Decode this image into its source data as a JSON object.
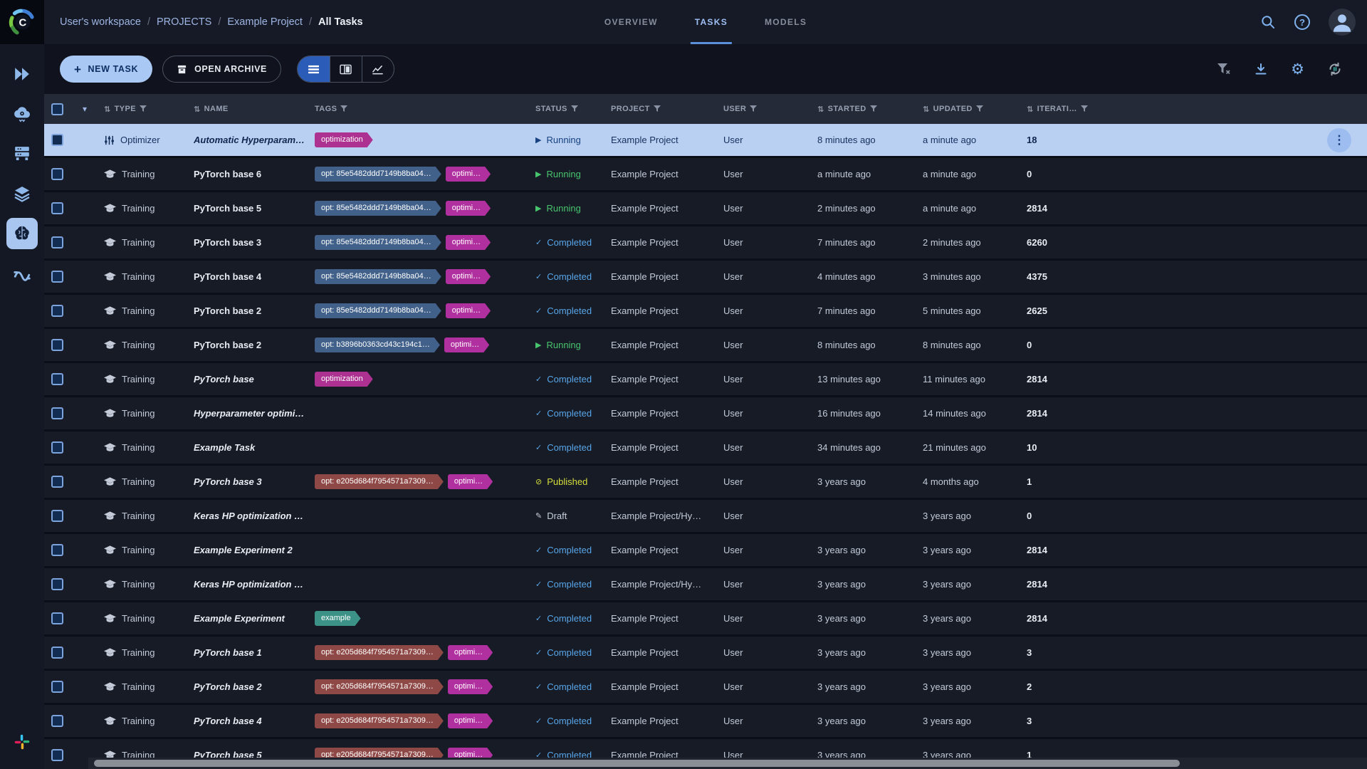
{
  "topbar": {
    "breadcrumb": [
      "User's workspace",
      "PROJECTS",
      "Example Project",
      "All Tasks"
    ],
    "separator": "/",
    "tabs": [
      {
        "label": "OVERVIEW",
        "active": false
      },
      {
        "label": "TASKS",
        "active": true
      },
      {
        "label": "MODELS",
        "active": false
      }
    ]
  },
  "toolbar": {
    "new_task": "NEW TASK",
    "open_archive": "OPEN ARCHIVE"
  },
  "sidebar": {
    "items": [
      {
        "name": "quick-start",
        "active": false
      },
      {
        "name": "apps",
        "active": false
      },
      {
        "name": "workers-queues",
        "active": false
      },
      {
        "name": "datasets",
        "active": false
      },
      {
        "name": "projects",
        "active": true
      },
      {
        "name": "pipelines",
        "active": false
      }
    ]
  },
  "icons": {
    "caret": "▾",
    "sort": "⇅",
    "play": "▶",
    "check": "✓",
    "published": "⊘",
    "draft": "✎",
    "menu": "⋮",
    "plus": "+",
    "gear": "⚙",
    "help": "?"
  },
  "colors": {
    "accent": "#7fb3f0",
    "selected_row": "#b9d0f2",
    "status_running": "#47c46d",
    "status_completed": "#58a6e8",
    "status_published": "#d6df3a",
    "status_draft": "#c7cfda",
    "tag_magenta": "#b1309f",
    "tag_optimization": "#ac3191",
    "tag_slate": "#41608a",
    "tag_red": "#8e4947",
    "tag_teal": "#3d9287"
  },
  "table": {
    "columns": [
      {
        "label": "TYPE",
        "sort": true,
        "filter": true
      },
      {
        "label": "NAME",
        "sort": true,
        "filter": false
      },
      {
        "label": "TAGS",
        "sort": false,
        "filter": true
      },
      {
        "label": "STATUS",
        "sort": false,
        "filter": true
      },
      {
        "label": "PROJECT",
        "sort": false,
        "filter": true
      },
      {
        "label": "USER",
        "sort": false,
        "filter": true
      },
      {
        "label": "STARTED",
        "sort": true,
        "filter": true
      },
      {
        "label": "UPDATED",
        "sort": true,
        "filter": true
      },
      {
        "label": "ITERATI…",
        "sort": true,
        "filter": true
      }
    ],
    "rows": [
      {
        "selected": true,
        "type": "Optimizer",
        "name": "Automatic Hyperparamete…",
        "italic": true,
        "tags": [
          {
            "text": "optimization",
            "color": "#ac3191"
          }
        ],
        "status": {
          "label": "Running",
          "kind": "running"
        },
        "project": "Example Project",
        "user": "User",
        "started": "8 minutes ago",
        "updated": "a minute ago",
        "iterations": "18",
        "menu": true
      },
      {
        "type": "Training",
        "name": "PyTorch base 6",
        "italic": false,
        "tags": [
          {
            "text": "opt: 85e5482ddd7149b8ba04…",
            "color": "#41608a"
          },
          {
            "text": "optimi…",
            "color": "#b1309f"
          }
        ],
        "status": {
          "label": "Running",
          "kind": "running"
        },
        "project": "Example Project",
        "user": "User",
        "started": "a minute ago",
        "updated": "a minute ago",
        "iterations": "0"
      },
      {
        "type": "Training",
        "name": "PyTorch base 5",
        "italic": false,
        "tags": [
          {
            "text": "opt: 85e5482ddd7149b8ba04…",
            "color": "#41608a"
          },
          {
            "text": "optimi…",
            "color": "#b1309f"
          }
        ],
        "status": {
          "label": "Running",
          "kind": "running"
        },
        "project": "Example Project",
        "user": "User",
        "started": "2 minutes ago",
        "updated": "a minute ago",
        "iterations": "2814"
      },
      {
        "type": "Training",
        "name": "PyTorch base 3",
        "italic": false,
        "tags": [
          {
            "text": "opt: 85e5482ddd7149b8ba04…",
            "color": "#41608a"
          },
          {
            "text": "optimi…",
            "color": "#b1309f"
          }
        ],
        "status": {
          "label": "Completed",
          "kind": "completed"
        },
        "project": "Example Project",
        "user": "User",
        "started": "7 minutes ago",
        "updated": "2 minutes ago",
        "iterations": "6260"
      },
      {
        "type": "Training",
        "name": "PyTorch base 4",
        "italic": false,
        "tags": [
          {
            "text": "opt: 85e5482ddd7149b8ba04…",
            "color": "#41608a"
          },
          {
            "text": "optimi…",
            "color": "#b1309f"
          }
        ],
        "status": {
          "label": "Completed",
          "kind": "completed"
        },
        "project": "Example Project",
        "user": "User",
        "started": "4 minutes ago",
        "updated": "3 minutes ago",
        "iterations": "4375"
      },
      {
        "type": "Training",
        "name": "PyTorch base 2",
        "italic": false,
        "tags": [
          {
            "text": "opt: 85e5482ddd7149b8ba04…",
            "color": "#41608a"
          },
          {
            "text": "optimi…",
            "color": "#b1309f"
          }
        ],
        "status": {
          "label": "Completed",
          "kind": "completed"
        },
        "project": "Example Project",
        "user": "User",
        "started": "7 minutes ago",
        "updated": "5 minutes ago",
        "iterations": "2625"
      },
      {
        "type": "Training",
        "name": "PyTorch base 2",
        "italic": false,
        "tags": [
          {
            "text": "opt: b3896b0363cd43c194c1…",
            "color": "#41608a"
          },
          {
            "text": "optimi…",
            "color": "#b1309f"
          }
        ],
        "status": {
          "label": "Running",
          "kind": "running"
        },
        "project": "Example Project",
        "user": "User",
        "started": "8 minutes ago",
        "updated": "8 minutes ago",
        "iterations": "0"
      },
      {
        "type": "Training",
        "name": "PyTorch base",
        "italic": true,
        "tags": [
          {
            "text": "optimization",
            "color": "#ac3191"
          }
        ],
        "status": {
          "label": "Completed",
          "kind": "completed"
        },
        "project": "Example Project",
        "user": "User",
        "started": "13 minutes ago",
        "updated": "11 minutes ago",
        "iterations": "2814"
      },
      {
        "type": "Training",
        "name": "Hyperparameter optimizati…",
        "italic": true,
        "tags": [],
        "status": {
          "label": "Completed",
          "kind": "completed"
        },
        "project": "Example Project",
        "user": "User",
        "started": "16 minutes ago",
        "updated": "14 minutes ago",
        "iterations": "2814"
      },
      {
        "type": "Training",
        "name": "Example Task",
        "italic": true,
        "tags": [],
        "status": {
          "label": "Completed",
          "kind": "completed"
        },
        "project": "Example Project",
        "user": "User",
        "started": "34 minutes ago",
        "updated": "21 minutes ago",
        "iterations": "10"
      },
      {
        "type": "Training",
        "name": "PyTorch base 3",
        "italic": true,
        "tags": [
          {
            "text": "opt: e205d684f7954571a7309…",
            "color": "#8e4947"
          },
          {
            "text": "optimi…",
            "color": "#b1309f"
          }
        ],
        "status": {
          "label": "Published",
          "kind": "published"
        },
        "project": "Example Project",
        "user": "User",
        "started": "3 years ago",
        "updated": "4 months ago",
        "iterations": "1"
      },
      {
        "type": "Training",
        "name": "Keras HP optimization base",
        "italic": true,
        "tags": [],
        "status": {
          "label": "Draft",
          "kind": "draft"
        },
        "project": "Example Project/Hy…",
        "user": "User",
        "started": "",
        "updated": "3 years ago",
        "iterations": "0"
      },
      {
        "type": "Training",
        "name": "Example Experiment 2",
        "italic": true,
        "tags": [],
        "status": {
          "label": "Completed",
          "kind": "completed"
        },
        "project": "Example Project",
        "user": "User",
        "started": "3 years ago",
        "updated": "3 years ago",
        "iterations": "2814"
      },
      {
        "type": "Training",
        "name": "Keras HP optimization base",
        "italic": true,
        "tags": [],
        "status": {
          "label": "Completed",
          "kind": "completed"
        },
        "project": "Example Project/Hy…",
        "user": "User",
        "started": "3 years ago",
        "updated": "3 years ago",
        "iterations": "2814"
      },
      {
        "type": "Training",
        "name": "Example Experiment",
        "italic": true,
        "tags": [
          {
            "text": "example",
            "color": "#3d9287"
          }
        ],
        "status": {
          "label": "Completed",
          "kind": "completed"
        },
        "project": "Example Project",
        "user": "User",
        "started": "3 years ago",
        "updated": "3 years ago",
        "iterations": "2814"
      },
      {
        "type": "Training",
        "name": "PyTorch base 1",
        "italic": true,
        "tags": [
          {
            "text": "opt: e205d684f7954571a7309…",
            "color": "#8e4947"
          },
          {
            "text": "optimi…",
            "color": "#b1309f"
          }
        ],
        "status": {
          "label": "Completed",
          "kind": "completed"
        },
        "project": "Example Project",
        "user": "User",
        "started": "3 years ago",
        "updated": "3 years ago",
        "iterations": "3"
      },
      {
        "type": "Training",
        "name": "PyTorch base 2",
        "italic": true,
        "tags": [
          {
            "text": "opt: e205d684f7954571a7309…",
            "color": "#8e4947"
          },
          {
            "text": "optimi…",
            "color": "#b1309f"
          }
        ],
        "status": {
          "label": "Completed",
          "kind": "completed"
        },
        "project": "Example Project",
        "user": "User",
        "started": "3 years ago",
        "updated": "3 years ago",
        "iterations": "2"
      },
      {
        "type": "Training",
        "name": "PyTorch base 4",
        "italic": true,
        "tags": [
          {
            "text": "opt: e205d684f7954571a7309…",
            "color": "#8e4947"
          },
          {
            "text": "optimi…",
            "color": "#b1309f"
          }
        ],
        "status": {
          "label": "Completed",
          "kind": "completed"
        },
        "project": "Example Project",
        "user": "User",
        "started": "3 years ago",
        "updated": "3 years ago",
        "iterations": "3"
      },
      {
        "type": "Training",
        "name": "PyTorch base 5",
        "italic": true,
        "tags": [
          {
            "text": "opt: e205d684f7954571a7309…",
            "color": "#8e4947"
          },
          {
            "text": "optimi…",
            "color": "#b1309f"
          }
        ],
        "status": {
          "label": "Completed",
          "kind": "completed"
        },
        "project": "Example Project",
        "user": "User",
        "started": "3 years ago",
        "updated": "3 years ago",
        "iterations": "1"
      }
    ]
  }
}
